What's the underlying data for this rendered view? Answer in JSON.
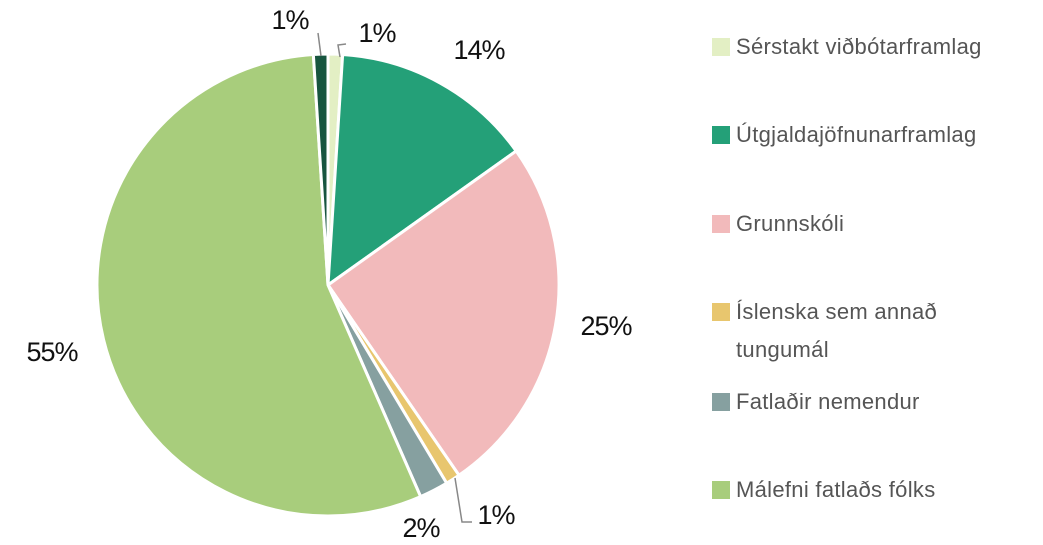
{
  "chart_data": {
    "type": "pie",
    "categories": [
      "Sérstakt viðbótarframlag",
      "Útgjaldajöfnunarframlag",
      "Grunnskóli",
      "Íslenska sem annað tungumál",
      "Fatlaðir nemendur",
      "Málefni fatlaðs fólks",
      null
    ],
    "values": [
      1,
      14,
      25,
      1,
      2,
      55,
      1
    ],
    "value_labels": [
      "1%",
      "14%",
      "25%",
      "1%",
      "2%",
      "55%",
      "1%"
    ],
    "colors": [
      "#e3efc4",
      "#24a078",
      "#f2babb",
      "#e8c66e",
      "#86a0a0",
      "#a8cd7c",
      "#17553f"
    ],
    "legend": "right"
  }
}
